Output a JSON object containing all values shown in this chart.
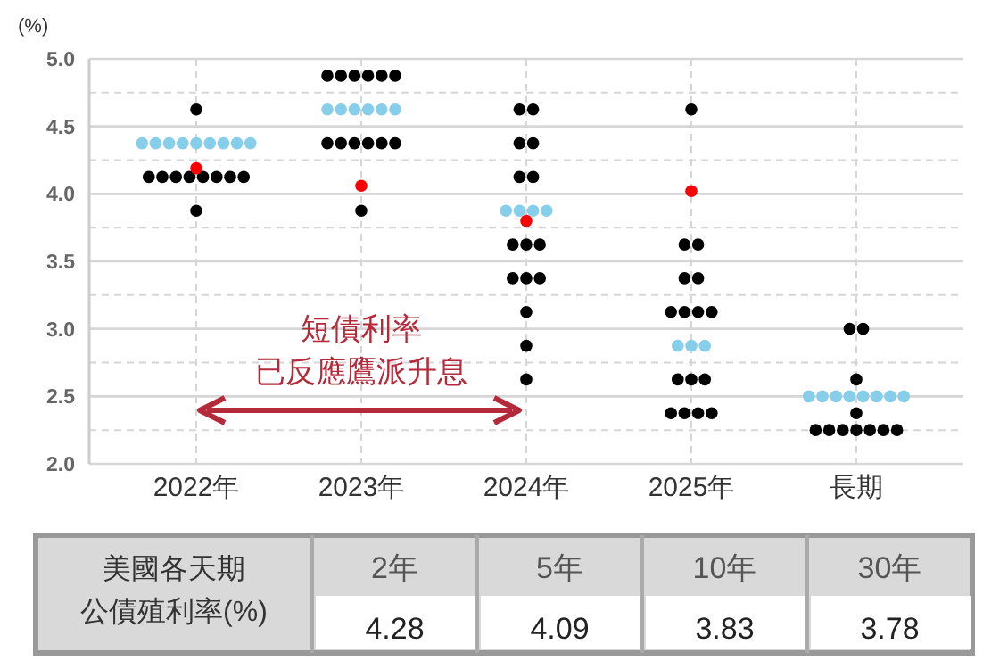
{
  "chart_data": [
    {
      "type": "scatter",
      "ylabel": "(%)",
      "categories": [
        "2022年",
        "2023年",
        "2024年",
        "2025年",
        "長期"
      ],
      "ylim": [
        2.0,
        5.0
      ],
      "yticks": [
        {
          "value": 2.0,
          "label": "2.0"
        },
        {
          "value": 2.25,
          "label": null
        },
        {
          "value": 2.5,
          "label": "2.5"
        },
        {
          "value": 2.75,
          "label": null
        },
        {
          "value": 3.0,
          "label": "3.0"
        },
        {
          "value": 3.25,
          "label": null
        },
        {
          "value": 3.5,
          "label": "3.5"
        },
        {
          "value": 3.75,
          "label": null
        },
        {
          "value": 4.0,
          "label": "4.0"
        },
        {
          "value": 4.25,
          "label": null
        },
        {
          "value": 4.5,
          "label": "4.5"
        },
        {
          "value": 4.75,
          "label": null
        },
        {
          "value": 5.0,
          "label": "5.0"
        }
      ],
      "grid": true,
      "marker": "circle",
      "series": [
        {
          "color": "#000000",
          "x": [
            "2022年",
            "2022年",
            "2022年",
            "2022年",
            "2022年",
            "2022年",
            "2022年",
            "2022年",
            "2022年",
            "2022年",
            "2023年",
            "2023年",
            "2023年",
            "2023年",
            "2023年",
            "2023年",
            "2023年",
            "2023年",
            "2023年",
            "2023年",
            "2023年",
            "2023年",
            "2023年",
            "2024年",
            "2024年",
            "2024年",
            "2024年",
            "2024年",
            "2024年",
            "2024年",
            "2024年",
            "2024年",
            "2024年",
            "2024年",
            "2024年",
            "2024年",
            "2024年",
            "2024年",
            "2025年",
            "2025年",
            "2025年",
            "2025年",
            "2025年",
            "2025年",
            "2025年",
            "2025年",
            "2025年",
            "2025年",
            "2025年",
            "2025年",
            "2025年",
            "2025年",
            "2025年",
            "2025年",
            "長期",
            "長期",
            "長期",
            "長期",
            "長期",
            "長期",
            "長期",
            "長期",
            "長期",
            "長期",
            "長期"
          ],
          "values": [
            4.625,
            4.125,
            4.125,
            4.125,
            4.125,
            4.125,
            4.125,
            4.125,
            4.125,
            3.875,
            4.875,
            4.875,
            4.875,
            4.875,
            4.875,
            4.875,
            4.375,
            4.375,
            4.375,
            4.375,
            4.375,
            4.375,
            3.875,
            4.625,
            4.625,
            4.375,
            4.375,
            4.125,
            4.125,
            3.625,
            3.625,
            3.625,
            3.375,
            3.375,
            3.375,
            3.125,
            2.875,
            2.625,
            4.625,
            3.625,
            3.625,
            3.375,
            3.375,
            3.125,
            3.125,
            3.125,
            3.125,
            2.625,
            2.625,
            2.625,
            2.375,
            2.375,
            2.375,
            2.375,
            3.0,
            3.0,
            2.625,
            2.375,
            2.25,
            2.25,
            2.25,
            2.25,
            2.25,
            2.25,
            2.25
          ]
        },
        {
          "color": "#87ceeb",
          "x": [
            "2022年",
            "2022年",
            "2022年",
            "2022年",
            "2022年",
            "2022年",
            "2022年",
            "2022年",
            "2022年",
            "2023年",
            "2023年",
            "2023年",
            "2023年",
            "2023年",
            "2023年",
            "2024年",
            "2024年",
            "2024年",
            "2024年",
            "2025年",
            "2025年",
            "2025年",
            "長期",
            "長期",
            "長期",
            "長期",
            "長期",
            "長期",
            "長期",
            "長期"
          ],
          "values": [
            4.375,
            4.375,
            4.375,
            4.375,
            4.375,
            4.375,
            4.375,
            4.375,
            4.375,
            4.625,
            4.625,
            4.625,
            4.625,
            4.625,
            4.625,
            3.875,
            3.875,
            3.875,
            3.875,
            2.875,
            2.875,
            2.875,
            2.5,
            2.5,
            2.5,
            2.5,
            2.5,
            2.5,
            2.5,
            2.5
          ]
        },
        {
          "color": "#ff0000",
          "x": [
            "2022年",
            "2023年",
            "2024年",
            "2025年"
          ],
          "values": [
            4.19,
            4.06,
            3.8,
            4.02
          ]
        }
      ],
      "annotations": [
        "短債利率",
        "已反應鷹派升息"
      ]
    },
    {
      "type": "other",
      "title": "美國各天期公債殖利率(%)",
      "categories": [
        "2年",
        "5年",
        "10年",
        "30年"
      ],
      "values": [
        4.28,
        4.09,
        3.83,
        3.78
      ],
      "data_labels": true
    }
  ]
}
